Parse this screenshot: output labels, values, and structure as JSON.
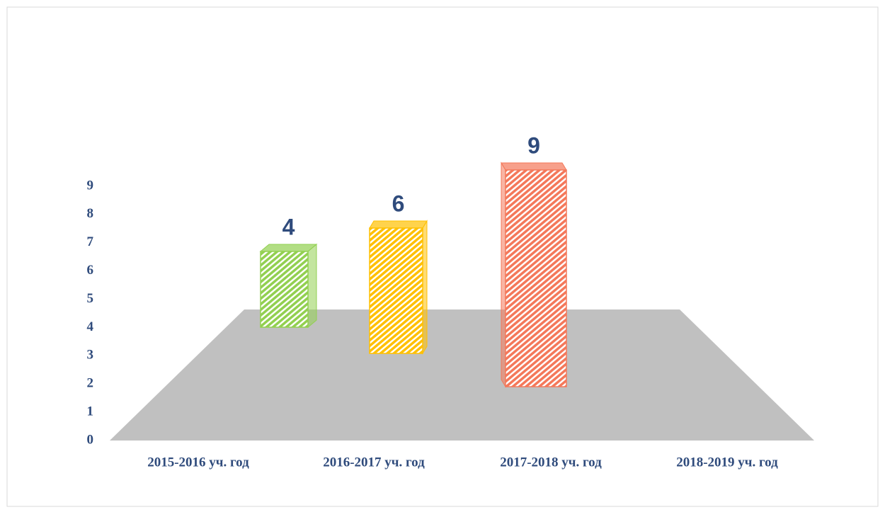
{
  "chart_data": {
    "type": "bar3d",
    "categories": [
      "2015-2016 уч. год",
      "2016-2017 уч. год",
      "2017-2018 уч. год",
      "2018-2019 уч. год"
    ],
    "values": [
      4,
      6,
      9,
      null
    ],
    "colors": [
      "#92d050",
      "#ffc000",
      "#f4785a"
    ],
    "ylim": [
      0,
      9
    ],
    "yticks": [
      0,
      1,
      2,
      3,
      4,
      5,
      6,
      7,
      8,
      9
    ]
  }
}
